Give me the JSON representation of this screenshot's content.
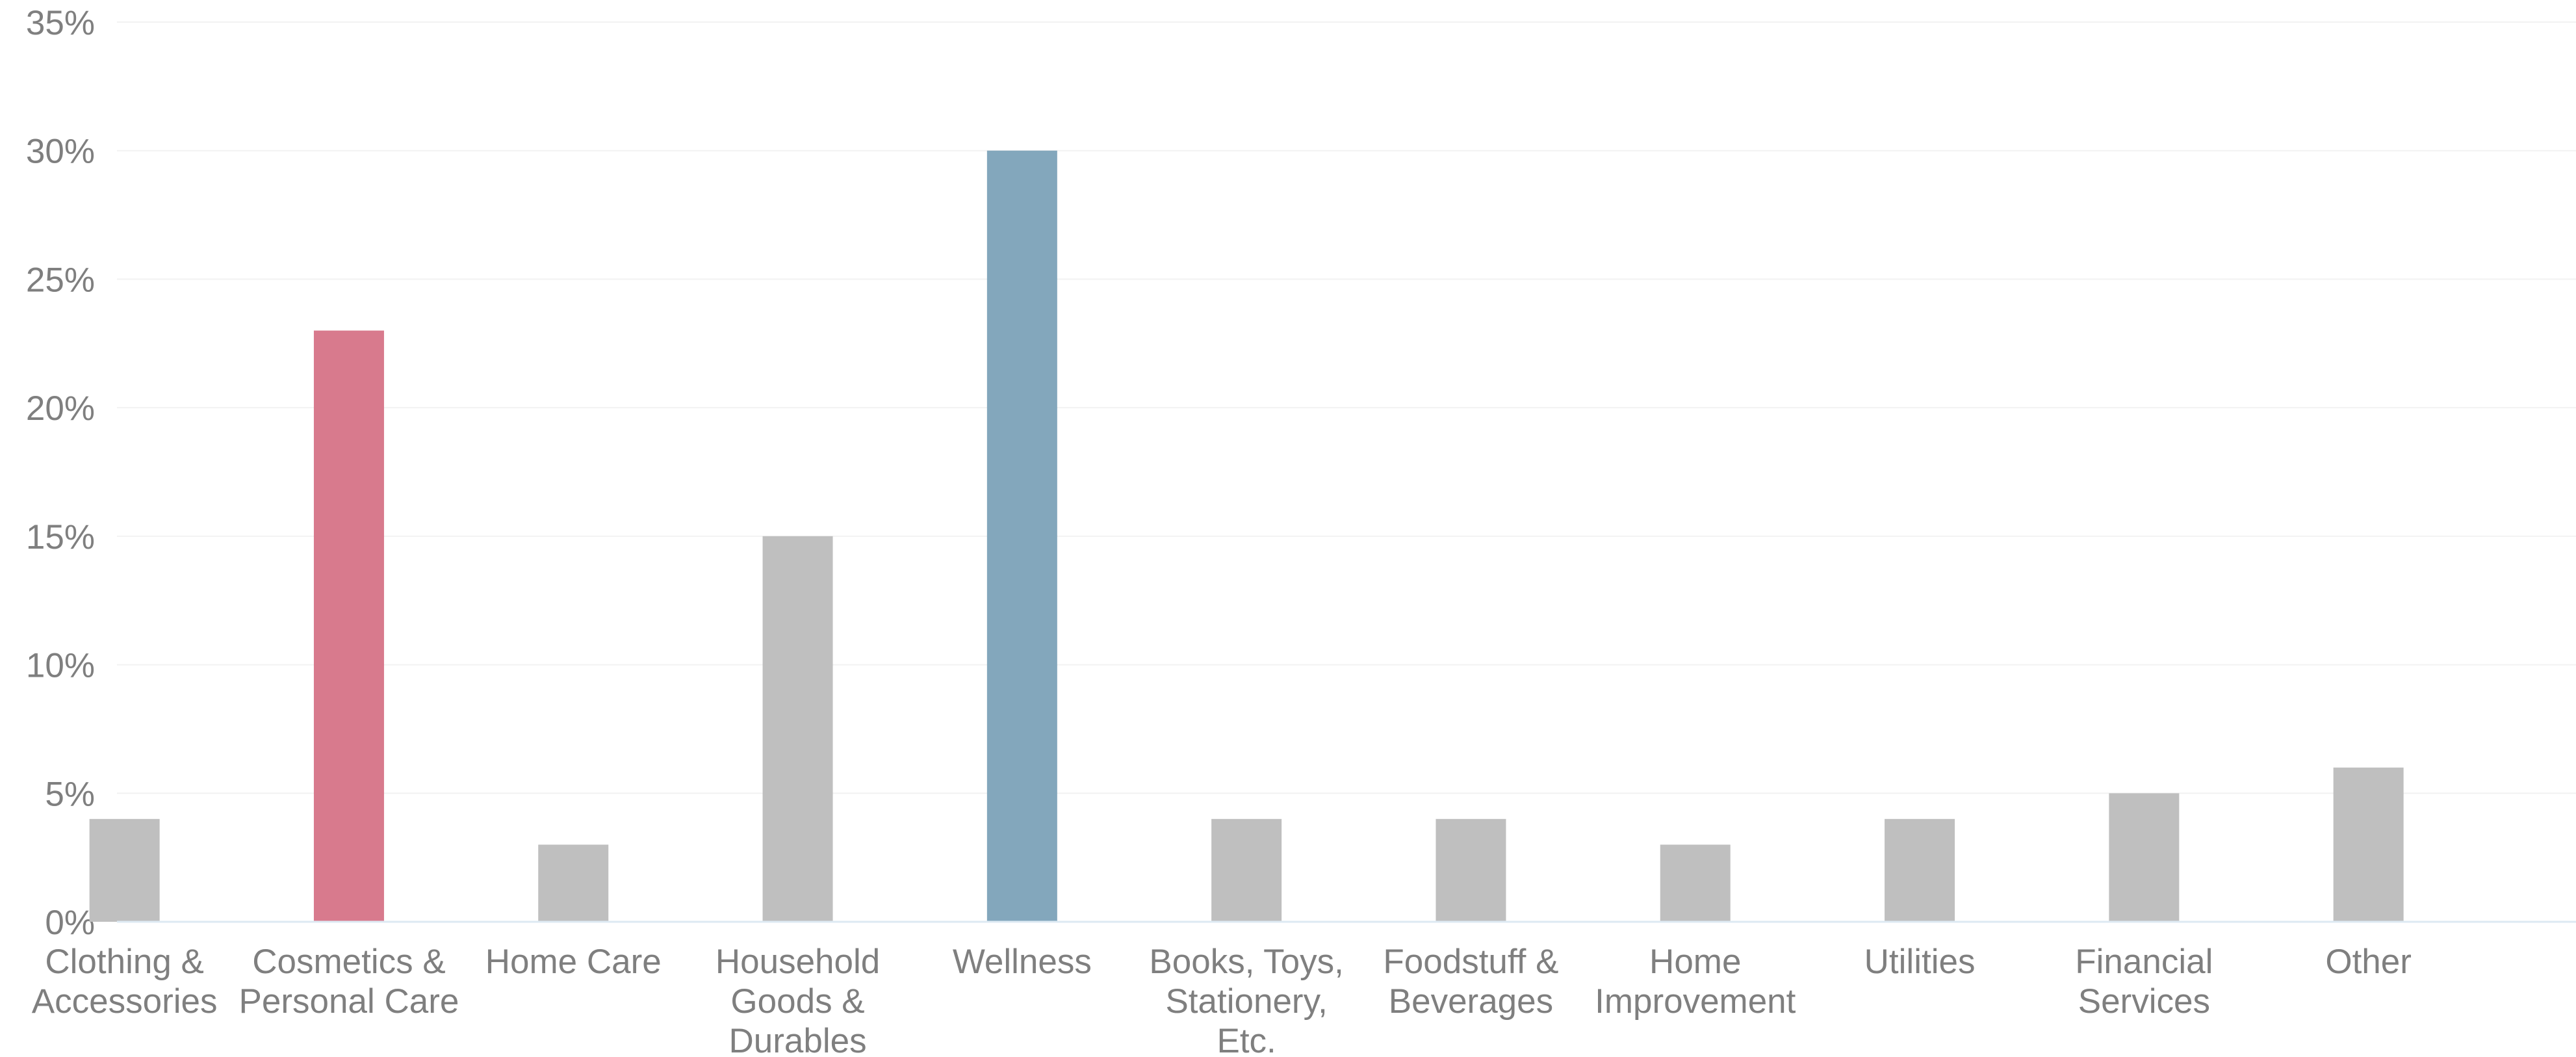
{
  "chart_data": {
    "type": "bar",
    "categories": [
      [
        "Clothing &",
        "Accessories"
      ],
      [
        "Cosmetics &",
        "Personal Care"
      ],
      [
        "Home Care"
      ],
      [
        "Household",
        "Goods &",
        "Durables"
      ],
      [
        "Wellness"
      ],
      [
        "Books, Toys,",
        "Stationery,",
        "Etc."
      ],
      [
        "Foodstuff &",
        "Beverages"
      ],
      [
        "Home",
        "Improvement"
      ],
      [
        "Utilities"
      ],
      [
        "Financial",
        "Services"
      ],
      [
        "Other"
      ]
    ],
    "values": [
      4,
      23,
      3,
      15,
      30,
      4,
      4,
      3,
      4,
      5,
      6
    ],
    "ylim": [
      0,
      35
    ],
    "yticks": [
      "0%",
      "5%",
      "10%",
      "15%",
      "20%",
      "25%",
      "30%",
      "35%"
    ],
    "ytick_values": [
      0,
      5,
      10,
      15,
      20,
      25,
      30,
      35
    ],
    "grid": true,
    "colors": {
      "default": "#bfbfbf",
      "highlights": [
        "#d87a8d",
        "#83a7bc"
      ],
      "highlight_index": [
        1,
        4
      ]
    }
  }
}
